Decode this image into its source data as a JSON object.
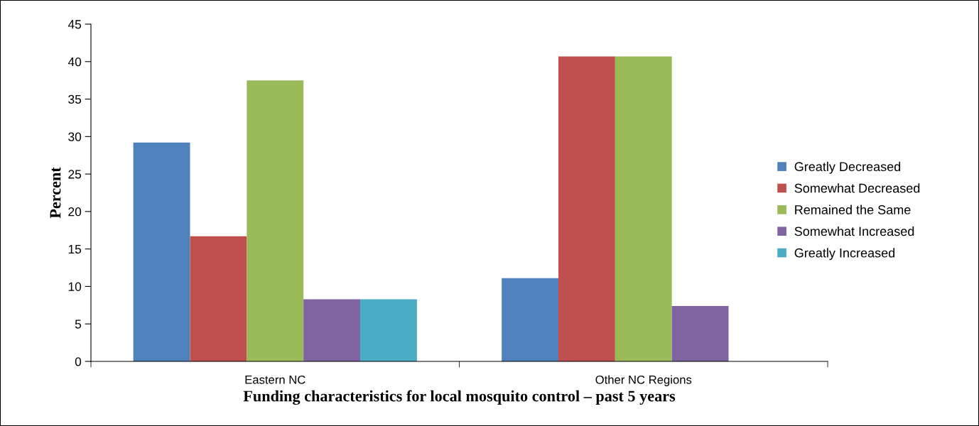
{
  "chart_data": {
    "type": "bar",
    "xlabel": "Funding characteristics for local mosquito control – past 5 years",
    "ylabel": "Percent",
    "categories": [
      "Eastern NC",
      "Other NC Regions"
    ],
    "series": [
      {
        "name": "Greatly Decreased",
        "color": "#4f81bd",
        "values": [
          29.2,
          11.1
        ]
      },
      {
        "name": "Somewhat Decreased",
        "color": "#c0504d",
        "values": [
          16.7,
          40.7
        ]
      },
      {
        "name": "Remained the Same",
        "color": "#9bbb59",
        "values": [
          37.5,
          40.7
        ]
      },
      {
        "name": "Somewhat Increased",
        "color": "#8064a2",
        "values": [
          8.3,
          7.4
        ]
      },
      {
        "name": "Greatly Increased",
        "color": "#4bacc6",
        "values": [
          8.3,
          0
        ]
      }
    ],
    "ylim": [
      0,
      45
    ],
    "yticks": [
      0,
      5,
      10,
      15,
      20,
      25,
      30,
      35,
      40,
      45
    ],
    "grid": false,
    "legend": "right"
  }
}
